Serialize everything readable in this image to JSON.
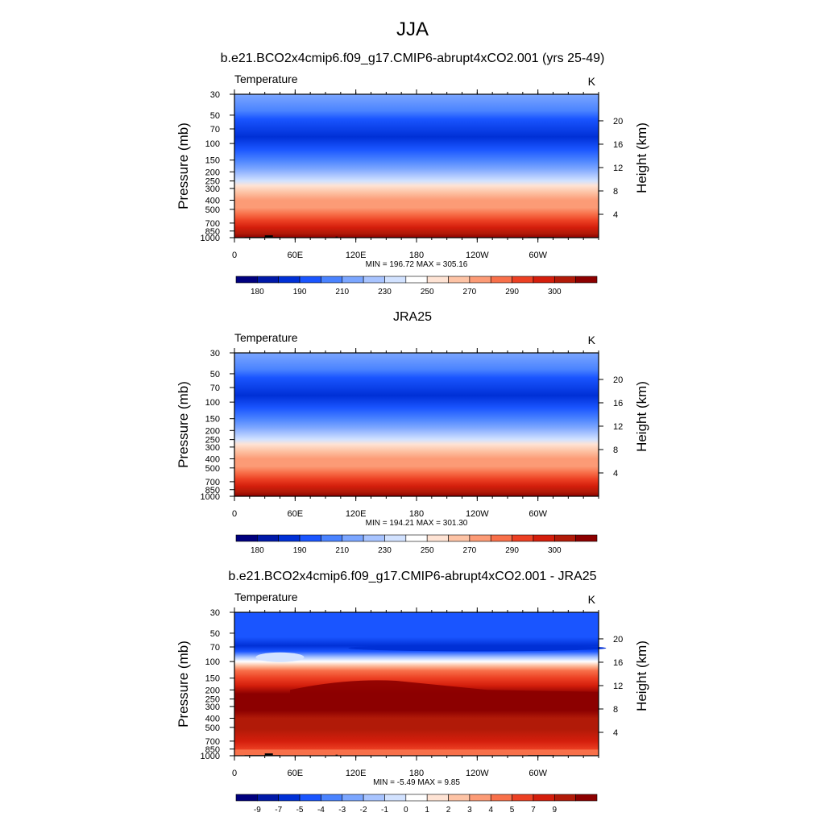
{
  "figure": {
    "title": "JJA"
  },
  "palette": [
    "#00007e",
    "#0019a8",
    "#0030d6",
    "#1a55ff",
    "#4a83ff",
    "#7ba6ff",
    "#a8c4ff",
    "#d2e2ff",
    "#ffffff",
    "#fee3d4",
    "#fdc3a5",
    "#fc9b76",
    "#f8704a",
    "#ec4023",
    "#d41e0c",
    "#b11a08",
    "#8c0000"
  ],
  "chart_data": [
    {
      "type": "heatmap",
      "title": "b.e21.BCO2x4cmip6.f09_g17.CMIP6-abrupt4xCO2.001 (yrs 25-49)",
      "left_label": "Temperature",
      "right_label": "K",
      "ylabel": "Pressure (mb)",
      "ylabel_right": "Height (km)",
      "x_ticks": [
        "0",
        "60E",
        "120E",
        "180",
        "120W",
        "60W"
      ],
      "y_ticks": [
        "30",
        "50",
        "70",
        "100",
        "150",
        "200",
        "250",
        "300",
        "400",
        "500",
        "700",
        "850",
        "1000"
      ],
      "y_ticks_right": [
        "20",
        "16",
        "12",
        "8",
        "4"
      ],
      "y_scale": "log pressure",
      "ylim": [
        1000,
        30
      ],
      "xlim": [
        0,
        360
      ],
      "stats": "MIN = 196.72  MAX = 305.16",
      "colorbar_labels": [
        "180",
        "190",
        "210",
        "230",
        "250",
        "270",
        "290",
        "300"
      ],
      "field": {
        "min": 196.72,
        "max": 305.16
      }
    },
    {
      "type": "heatmap",
      "title": "JRA25",
      "left_label": "Temperature",
      "right_label": "K",
      "ylabel": "Pressure (mb)",
      "ylabel_right": "Height (km)",
      "x_ticks": [
        "0",
        "60E",
        "120E",
        "180",
        "120W",
        "60W"
      ],
      "y_ticks": [
        "30",
        "50",
        "70",
        "100",
        "150",
        "200",
        "250",
        "300",
        "400",
        "500",
        "700",
        "850",
        "1000"
      ],
      "y_ticks_right": [
        "20",
        "16",
        "12",
        "8",
        "4"
      ],
      "y_scale": "log pressure",
      "ylim": [
        1000,
        30
      ],
      "xlim": [
        0,
        360
      ],
      "stats": "MIN = 194.21  MAX = 301.30",
      "colorbar_labels": [
        "180",
        "190",
        "210",
        "230",
        "250",
        "270",
        "290",
        "300"
      ],
      "field": {
        "min": 194.21,
        "max": 301.3
      }
    },
    {
      "type": "heatmap",
      "title": "b.e21.BCO2x4cmip6.f09_g17.CMIP6-abrupt4xCO2.001 - JRA25",
      "left_label": "Temperature",
      "right_label": "K",
      "ylabel": "Pressure (mb)",
      "ylabel_right": "Height (km)",
      "x_ticks": [
        "0",
        "60E",
        "120E",
        "180",
        "120W",
        "60W"
      ],
      "y_ticks": [
        "30",
        "50",
        "70",
        "100",
        "150",
        "200",
        "250",
        "300",
        "400",
        "500",
        "700",
        "850",
        "1000"
      ],
      "y_ticks_right": [
        "20",
        "16",
        "12",
        "8",
        "4"
      ],
      "y_scale": "log pressure",
      "ylim": [
        1000,
        30
      ],
      "xlim": [
        0,
        360
      ],
      "stats": "MIN =  -5.49  MAX =   9.85",
      "colorbar_labels": [
        "-9",
        "-7",
        "-5",
        "-4",
        "-3",
        "-2",
        "-1",
        "0",
        "1",
        "2",
        "3",
        "4",
        "5",
        "7",
        "9"
      ],
      "field": {
        "min": -5.49,
        "max": 9.85
      }
    }
  ]
}
